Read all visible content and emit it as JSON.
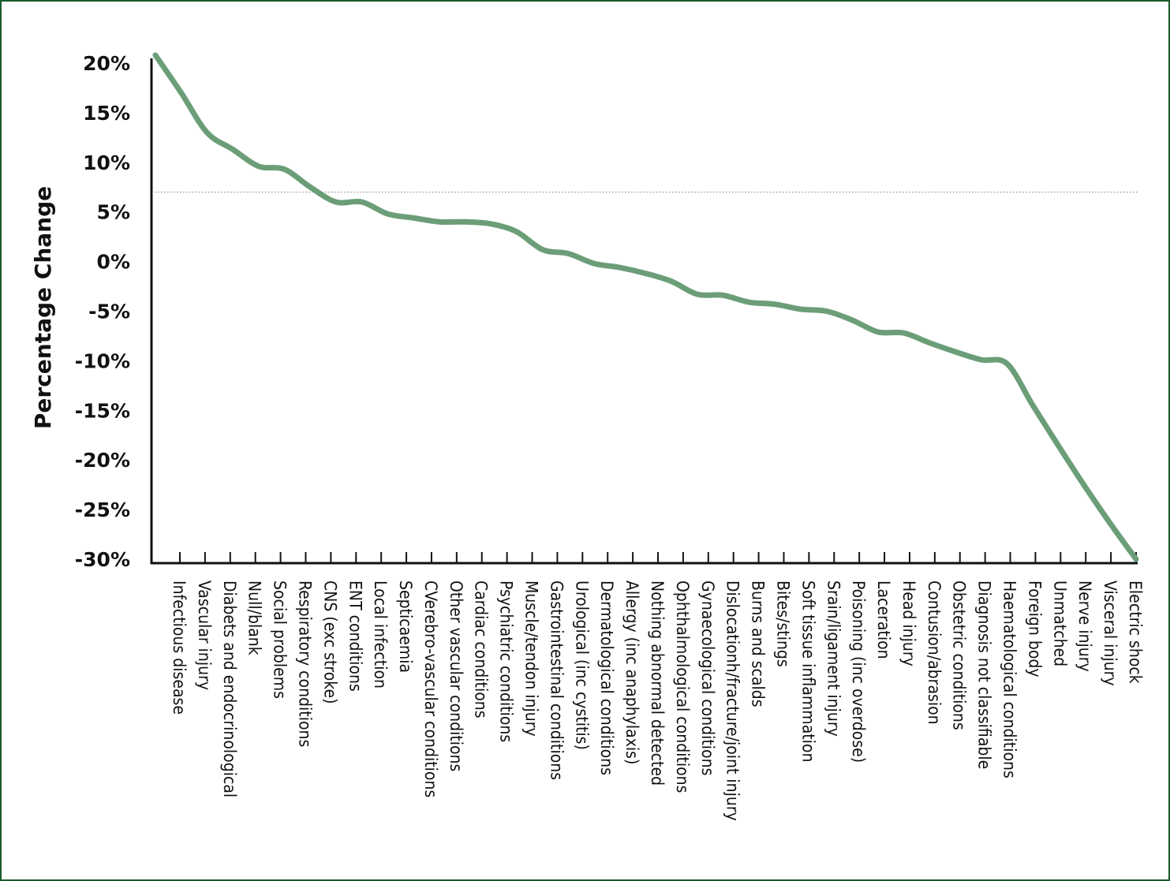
{
  "chart_data": {
    "type": "line",
    "title": "",
    "xlabel": "",
    "ylabel": "Percentage Change",
    "ylim": [
      -30,
      20
    ],
    "y_ticks": [
      "20%",
      "15%",
      "10%",
      "5%",
      "0%",
      "-5%",
      "-10%",
      "-15%",
      "-20%",
      "-25%",
      "-30%"
    ],
    "y_tick_values": [
      20,
      15,
      10,
      5,
      0,
      -5,
      -10,
      -15,
      -20,
      -25,
      -30
    ],
    "reference_line": 7,
    "grid": false,
    "legend": "none",
    "line_color": "#6b9e78",
    "reference_color": "#888888",
    "categories": [
      "Infectious disease",
      "Vascular injury",
      "Diabets and endocrinological",
      "Null/blank",
      "Social problems",
      "Respiratory conditions",
      "CNS (exc stroke)",
      "ENT conditions",
      "Local infection",
      "Septicaemia",
      "CVerebro-vascular conditions",
      "Other vascular conditions",
      "Cardiac conditions",
      "Psychiatric conditions",
      "Muscle/tendon injury",
      "Gastrointestinal conditions",
      "Urological (inc cystitis)",
      "Dermatological conditions",
      "Allergy (inc anaphylaxis)",
      "Nothing abnormal detected",
      "Ophthalmological conditions",
      "Gynaecological conditions",
      "Dislocationh/fracture/joint injury",
      "Burns and scalds",
      "Bites/stings",
      "Soft tissue inflammation",
      "Srain/ligament injury",
      "Poisoning (inc overdose)",
      "Laceration",
      "Head injury",
      "Contusion/abrasion",
      "Obstetric conditions",
      "Diagnosis not classifiable",
      "Haematological conditions",
      "Foreign body",
      "Unmatched",
      "Nerve injury",
      "Visceral injury",
      "Electric shock"
    ],
    "values": [
      20.8,
      17,
      13,
      11.3,
      9.6,
      9.3,
      7.5,
      6,
      6,
      4.8,
      4.4,
      4.0,
      4.0,
      3.8,
      3.0,
      1.2,
      0.8,
      -0.2,
      -0.6,
      -1.2,
      -2.0,
      -3.3,
      -3.4,
      -4.1,
      -4.3,
      -4.8,
      -5.0,
      -5.9,
      -7.1,
      -7.2,
      -8.2,
      -9.1,
      -9.9,
      -10.3,
      -14.5,
      -18.6,
      -22.6,
      -26.4,
      -30
    ]
  }
}
